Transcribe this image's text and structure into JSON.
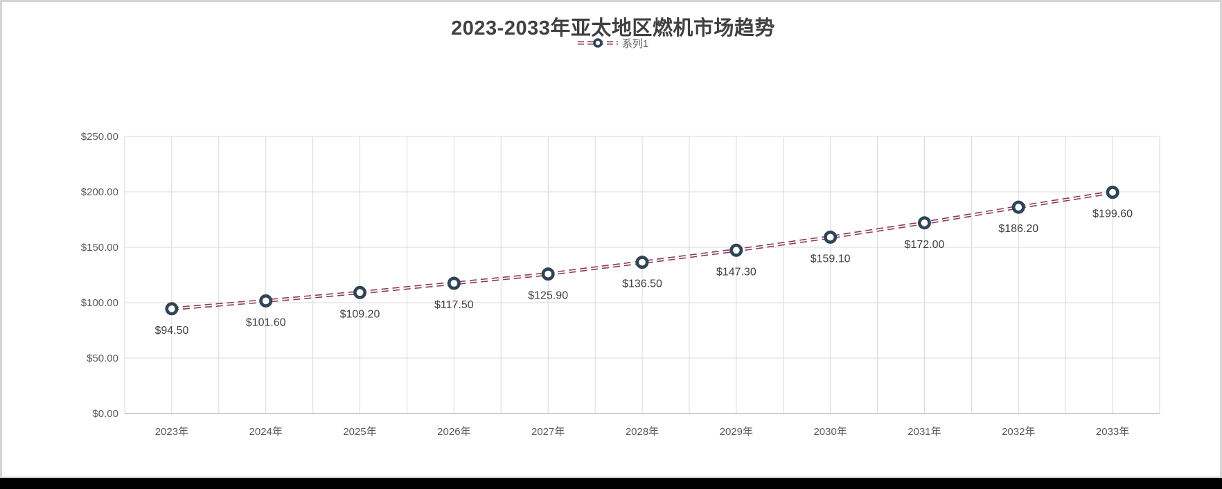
{
  "chart_data": {
    "type": "line",
    "title": "2023-2033年亚太地区燃机市场趋势",
    "legend": {
      "position": "top",
      "entries": [
        "系列1"
      ]
    },
    "categories": [
      "2023年",
      "2024年",
      "2025年",
      "2026年",
      "2027年",
      "2028年",
      "2029年",
      "2030年",
      "2031年",
      "2032年",
      "2033年"
    ],
    "series": [
      {
        "name": "系列1",
        "values": [
          94.5,
          101.6,
          109.2,
          117.5,
          125.9,
          136.5,
          147.3,
          159.1,
          172.0,
          186.2,
          199.6
        ],
        "labels": [
          "$94.50",
          "$101.60",
          "$109.20",
          "$117.50",
          "$125.90",
          "$136.50",
          "$147.30",
          "$159.10",
          "$172.00",
          "$186.20",
          "$199.60"
        ]
      }
    ],
    "xlabel": "",
    "ylabel": "",
    "ylim": [
      0,
      250
    ],
    "ytick_step": 50,
    "ytick_labels": [
      "$250.00",
      "$200.00",
      "$150.00",
      "$100.00",
      "$50.00",
      "$0.00"
    ],
    "grid": "both",
    "line_style": "double-dashed",
    "marker": "open-circle",
    "colors": {
      "line": "#8C3A56",
      "marker_ring": "#2F4457",
      "marker_fill": "#FFFFFF",
      "gridline": "#D9D9D9",
      "axis_line": "#BFBFBF",
      "title_text": "#404040",
      "axis_text": "#595959",
      "data_label_text": "#404040"
    }
  }
}
